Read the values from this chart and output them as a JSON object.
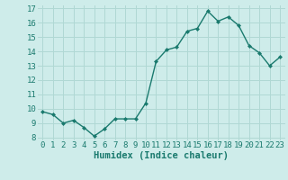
{
  "x": [
    0,
    1,
    2,
    3,
    4,
    5,
    6,
    7,
    8,
    9,
    10,
    11,
    12,
    13,
    14,
    15,
    16,
    17,
    18,
    19,
    20,
    21,
    22,
    23
  ],
  "y": [
    9.8,
    9.6,
    9.0,
    9.2,
    8.7,
    8.1,
    8.6,
    9.3,
    9.3,
    9.3,
    10.4,
    13.3,
    14.1,
    14.3,
    15.4,
    15.6,
    16.8,
    16.1,
    16.4,
    15.8,
    14.4,
    13.9,
    13.0,
    13.6
  ],
  "xlabel": "Humidex (Indice chaleur)",
  "ylim": [
    8,
    17
  ],
  "xlim": [
    -0.5,
    23.5
  ],
  "yticks": [
    8,
    9,
    10,
    11,
    12,
    13,
    14,
    15,
    16,
    17
  ],
  "xticks": [
    0,
    1,
    2,
    3,
    4,
    5,
    6,
    7,
    8,
    9,
    10,
    11,
    12,
    13,
    14,
    15,
    16,
    17,
    18,
    19,
    20,
    21,
    22,
    23
  ],
  "line_color": "#1a7a6e",
  "marker_color": "#1a7a6e",
  "bg_color": "#ceecea",
  "grid_color": "#b0d8d4",
  "xlabel_fontsize": 7.5,
  "tick_fontsize": 6.5,
  "xlabel_color": "#1a7a6e"
}
